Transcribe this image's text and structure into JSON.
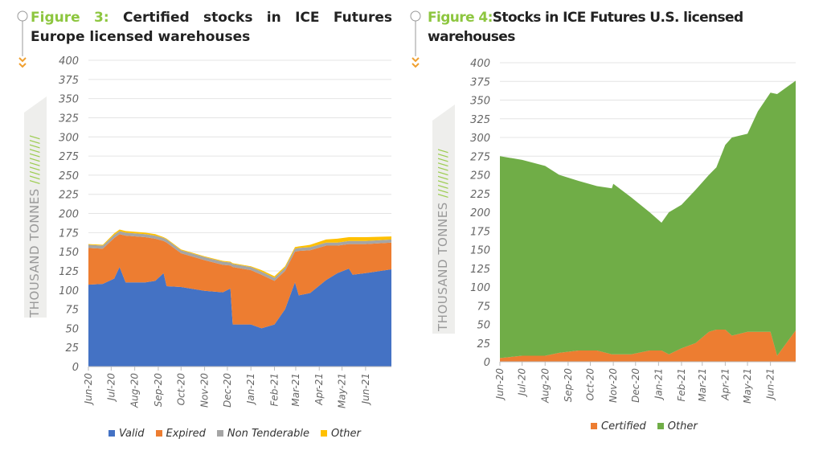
{
  "left": {
    "figure_label": "Figure 3:",
    "title": "Certified stocks in ICE Futures Europe licensed warehouses",
    "ylabel": "THOUSAND TONNES"
  },
  "right": {
    "figure_label": "Figure 4:",
    "title": "Stocks in ICE Futures U.S. licensed warehouses",
    "ylabel": "THOUSAND TONNES"
  },
  "chart_data": [
    {
      "type": "area",
      "stacked": true,
      "title": "Certified stocks in ICE Futures Europe licensed warehouses",
      "ylabel": "THOUSAND TONNES",
      "ylim": [
        0,
        400
      ],
      "yticks": [
        0,
        25,
        50,
        75,
        100,
        125,
        150,
        175,
        200,
        225,
        250,
        275,
        300,
        325,
        350,
        375,
        400
      ],
      "xlim": [
        "2020-06-01",
        "2021-07-05"
      ],
      "xticks": [
        "Jun-20",
        "Jul-20",
        "Aug-20",
        "Sep-20",
        "Oct-20",
        "Nov-20",
        "Dec-20",
        "Jan-21",
        "Feb-21",
        "Mar-21",
        "Apr-21",
        "May-21",
        "Jun-21"
      ],
      "grid": true,
      "legend": "bottom",
      "x": [
        "2020-06-01",
        "2020-06-20",
        "2020-07-05",
        "2020-07-12",
        "2020-07-20",
        "2020-08-15",
        "2020-08-28",
        "2020-09-08",
        "2020-09-12",
        "2020-10-01",
        "2020-11-01",
        "2020-11-25",
        "2020-12-05",
        "2020-12-08",
        "2021-01-01",
        "2021-01-15",
        "2021-02-01",
        "2021-02-15",
        "2021-02-28",
        "2021-03-05",
        "2021-03-20",
        "2021-04-10",
        "2021-04-25",
        "2021-05-10",
        "2021-05-15",
        "2021-06-01",
        "2021-07-05"
      ],
      "series": [
        {
          "name": "Valid",
          "color": "#4472c4",
          "values": [
            107,
            108,
            115,
            130,
            110,
            110,
            112,
            122,
            105,
            104,
            99,
            97,
            102,
            55,
            55,
            50,
            55,
            75,
            110,
            93,
            96,
            113,
            122,
            128,
            120,
            122,
            127
          ]
        },
        {
          "name": "Expired",
          "color": "#ed7d31",
          "values": [
            48,
            46,
            53,
            43,
            61,
            59,
            55,
            42,
            57,
            44,
            40,
            36,
            30,
            75,
            71,
            70,
            57,
            50,
            40,
            58,
            56,
            45,
            36,
            32,
            40,
            38,
            35
          ]
        },
        {
          "name": "Non Tenderable",
          "color": "#a5a5a5",
          "values": [
            4,
            4,
            4,
            4,
            4,
            4,
            4,
            4,
            4,
            4,
            4,
            4,
            4,
            4,
            4,
            4,
            4,
            4,
            4,
            4,
            4,
            4,
            4,
            4,
            4,
            4,
            4
          ]
        },
        {
          "name": "Other",
          "color": "#ffc000",
          "values": [
            1,
            1,
            2,
            2,
            2,
            2,
            2,
            1,
            1,
            1,
            1,
            1,
            1,
            1,
            1,
            2,
            2,
            2,
            2,
            2,
            3,
            4,
            5,
            5,
            5,
            5,
            4
          ]
        }
      ]
    },
    {
      "type": "area",
      "stacked": true,
      "title": "Stocks in ICE Futures U.S. licensed warehouses",
      "ylabel": "THOUSAND TONNES",
      "ylim": [
        0,
        400
      ],
      "yticks": [
        0,
        25,
        50,
        75,
        100,
        125,
        150,
        175,
        200,
        225,
        250,
        275,
        300,
        325,
        350,
        375,
        400
      ],
      "xlim": [
        "2020-06-01",
        "2021-07-05"
      ],
      "xticks": [
        "Jun-20",
        "Jul-20",
        "Aug-20",
        "Sep-20",
        "Oct-20",
        "Nov-20",
        "Dec-20",
        "Jan-21",
        "Feb-21",
        "Mar-21",
        "Apr-21",
        "May-21",
        "Jun-21"
      ],
      "grid": true,
      "legend": "bottom",
      "x": [
        "2020-06-01",
        "2020-07-01",
        "2020-08-01",
        "2020-08-20",
        "2020-09-15",
        "2020-10-10",
        "2020-10-30",
        "2020-11-01",
        "2020-11-25",
        "2020-12-20",
        "2021-01-05",
        "2021-01-15",
        "2021-02-01",
        "2021-02-20",
        "2021-03-10",
        "2021-03-20",
        "2021-04-01",
        "2021-04-10",
        "2021-05-01",
        "2021-05-15",
        "2021-06-01",
        "2021-06-10",
        "2021-07-05"
      ],
      "series": [
        {
          "name": "Certified",
          "color": "#ed7d31",
          "values": [
            5,
            8,
            8,
            12,
            15,
            15,
            10,
            10,
            10,
            15,
            15,
            10,
            18,
            25,
            40,
            43,
            43,
            35,
            40,
            40,
            40,
            8,
            42
          ]
        },
        {
          "name": "Other",
          "color": "#70ad47",
          "values": [
            270,
            262,
            254,
            238,
            227,
            220,
            222,
            228,
            210,
            185,
            171,
            190,
            192,
            205,
            210,
            217,
            247,
            265,
            265,
            295,
            320,
            350,
            334
          ]
        }
      ]
    }
  ]
}
